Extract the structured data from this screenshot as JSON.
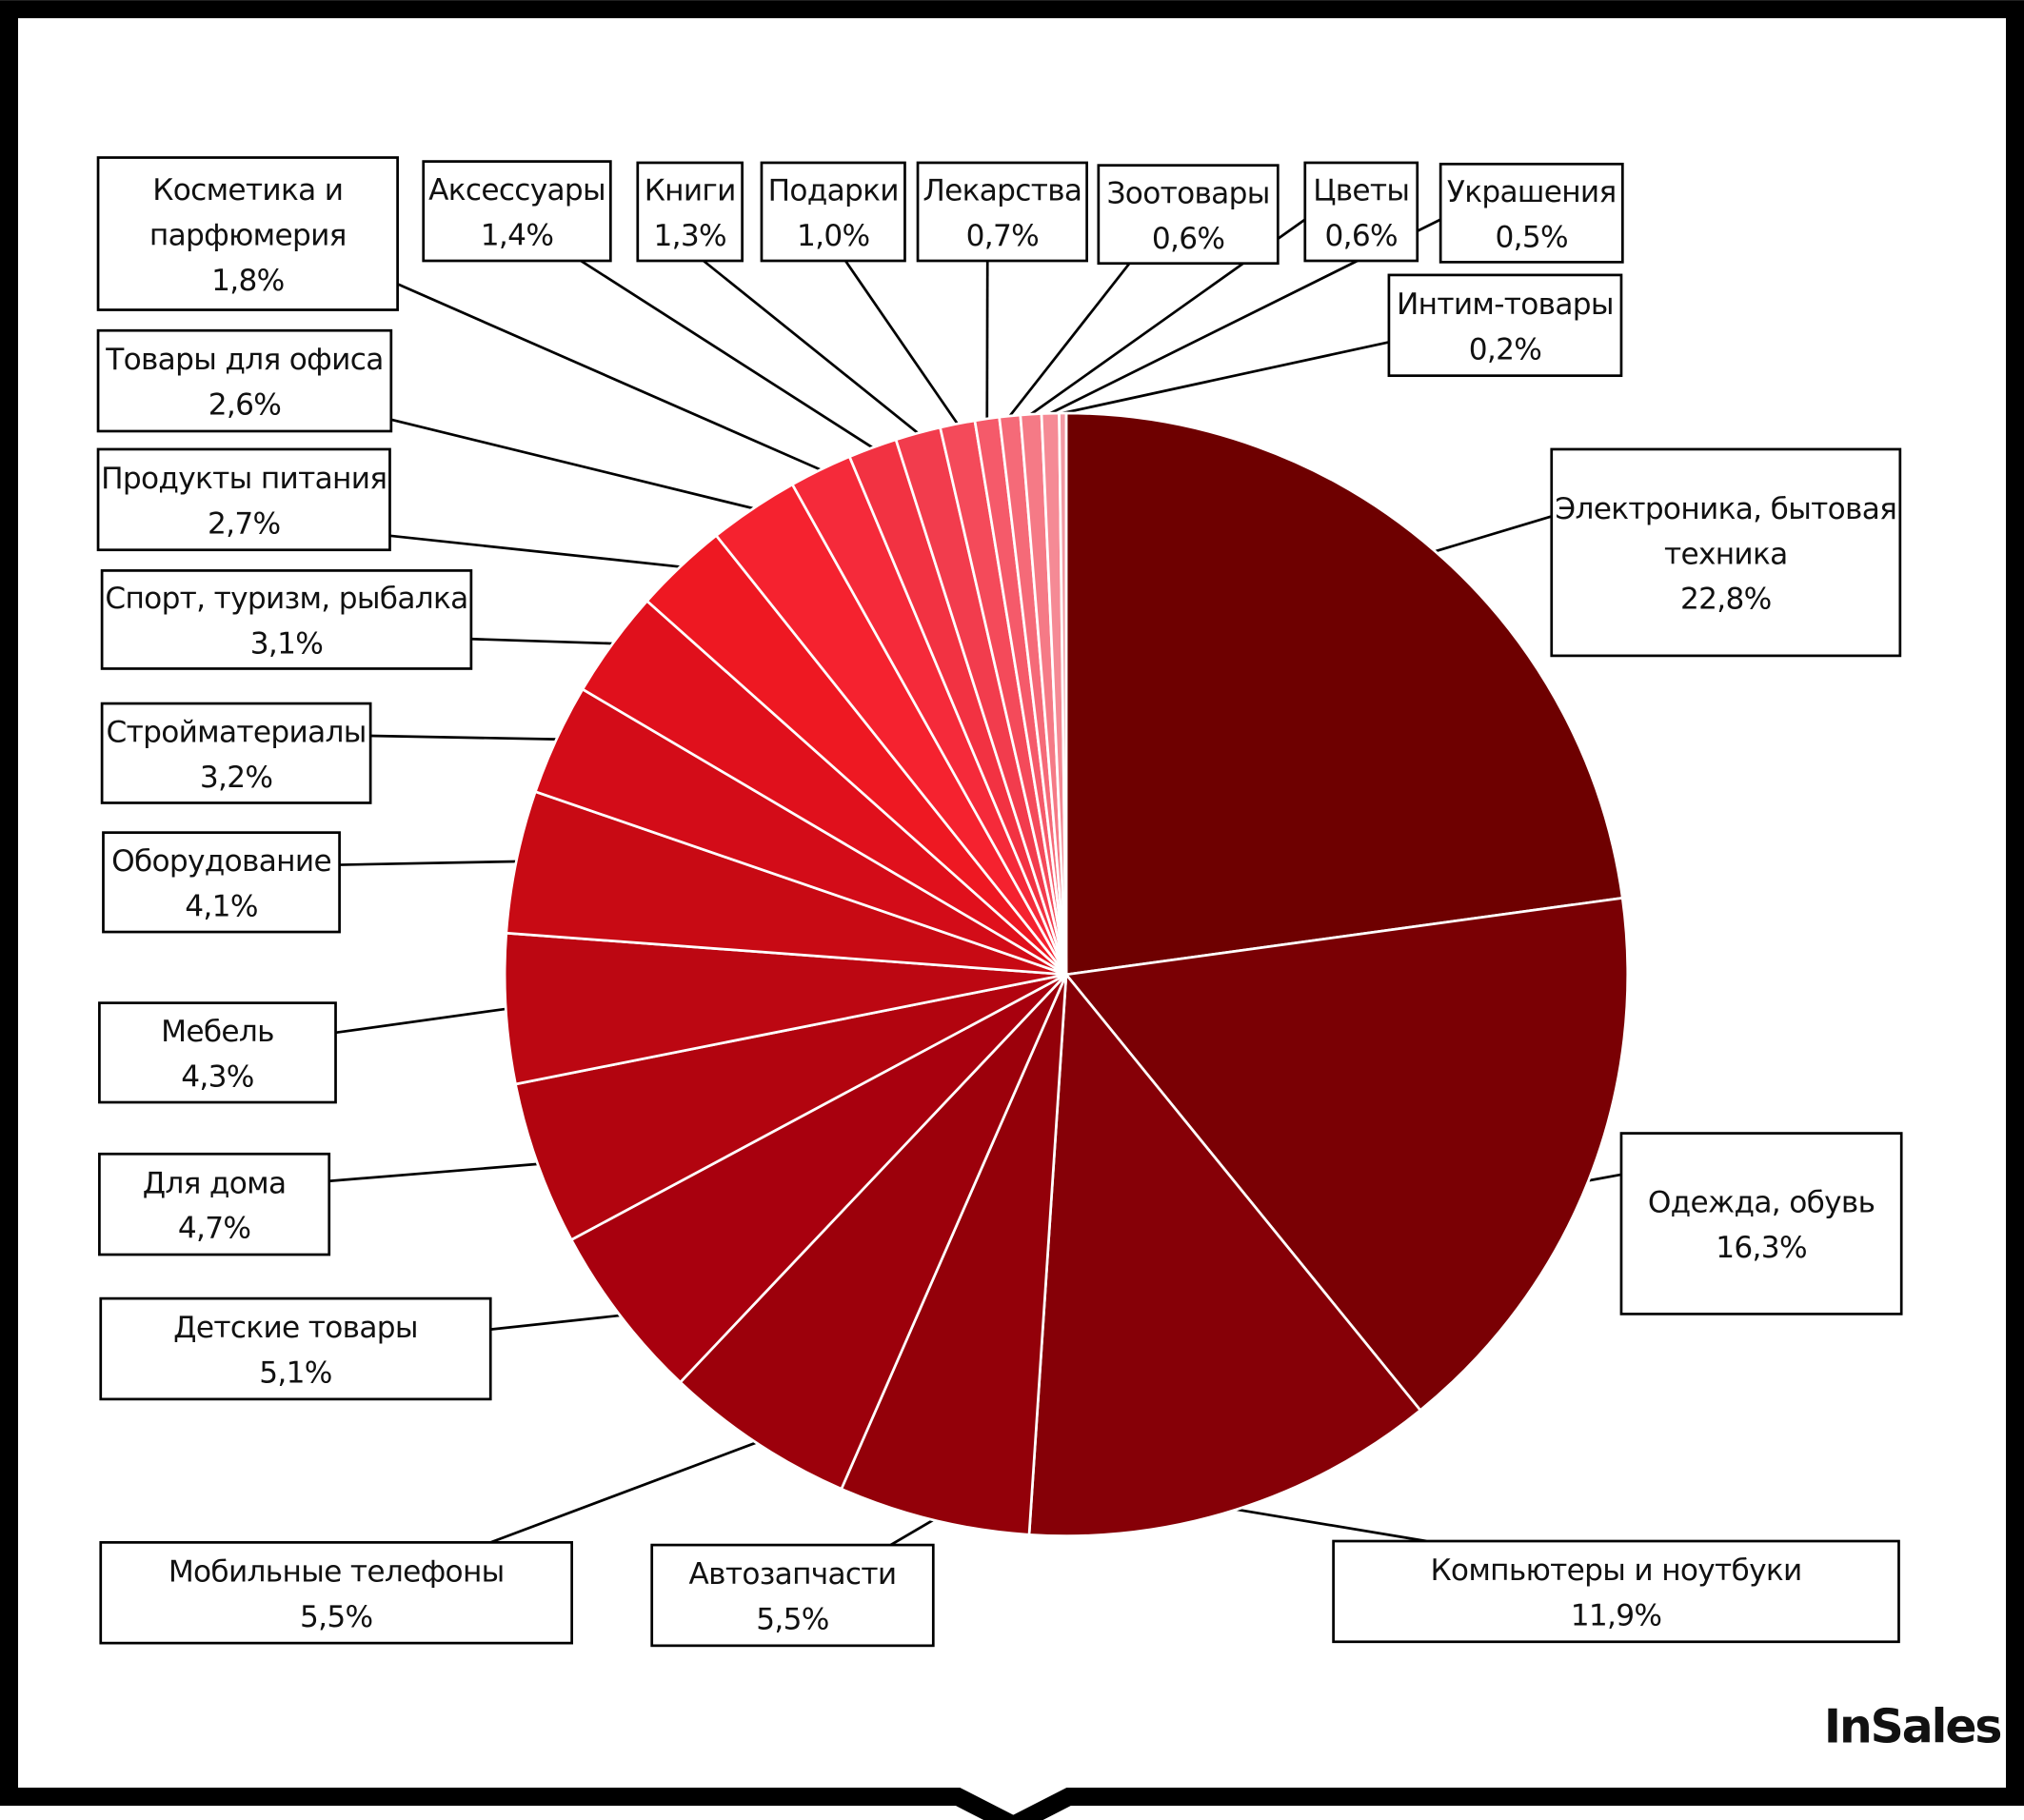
{
  "chart_data": {
    "type": "pie",
    "title": "",
    "start": "12 o'clock, clockwise",
    "legend": "none (callout labels)",
    "slices": [
      {
        "label": "Электроника, бытовая\nтехника",
        "value": 22.8,
        "value_label": "22,8%",
        "color": "#6e0000"
      },
      {
        "label": "Одежда, обувь",
        "value": 16.3,
        "value_label": "16,3%",
        "color": "#7a0004"
      },
      {
        "label": "Компьютеры и ноутбуки",
        "value": 11.9,
        "value_label": "11,9%",
        "color": "#860007"
      },
      {
        "label": "Автозапчасти",
        "value": 5.5,
        "value_label": "5,5%",
        "color": "#930009"
      },
      {
        "label": "Мобильные телефоны",
        "value": 5.5,
        "value_label": "5,5%",
        "color": "#9c000b"
      },
      {
        "label": "Детские товары",
        "value": 5.1,
        "value_label": "5,1%",
        "color": "#a8000e"
      },
      {
        "label": "Для дома",
        "value": 4.7,
        "value_label": "4,7%",
        "color": "#b2040f"
      },
      {
        "label": "Мебель",
        "value": 4.3,
        "value_label": "4,3%",
        "color": "#bc0712"
      },
      {
        "label": "Оборудование",
        "value": 4.1,
        "value_label": "4,1%",
        "color": "#c80a14"
      },
      {
        "label": "Стройматериалы",
        "value": 3.2,
        "value_label": "3,2%",
        "color": "#d30c18"
      },
      {
        "label": "Спорт, туризм, рыбалка",
        "value": 3.1,
        "value_label": "3,1%",
        "color": "#e0101c"
      },
      {
        "label": "Продукты питания",
        "value": 2.7,
        "value_label": "2,7%",
        "color": "#ee1822"
      },
      {
        "label": "Товары для офиса",
        "value": 2.6,
        "value_label": "2,6%",
        "color": "#f5222f"
      },
      {
        "label": "Косметика и\nпарфюмерия",
        "value": 1.8,
        "value_label": "1,8%",
        "color": "#f52a3a"
      },
      {
        "label": "Аксессуары",
        "value": 1.4,
        "value_label": "1,4%",
        "color": "#f23242"
      },
      {
        "label": "Книги",
        "value": 1.3,
        "value_label": "1,3%",
        "color": "#f23c4d"
      },
      {
        "label": "Подарки",
        "value": 1.0,
        "value_label": "1,0%",
        "color": "#f44a5a"
      },
      {
        "label": "Лекарства",
        "value": 0.7,
        "value_label": "0,7%",
        "color": "#f55a6a"
      },
      {
        "label": "Зоотовары",
        "value": 0.6,
        "value_label": "0,6%",
        "color": "#f56a78"
      },
      {
        "label": "Цветы",
        "value": 0.6,
        "value_label": "0,6%",
        "color": "#f57a86"
      },
      {
        "label": "Украшения",
        "value": 0.5,
        "value_label": "0,5%",
        "color": "#f58a95"
      },
      {
        "label": "Интим-товары",
        "value": 0.2,
        "value_label": "0,2%",
        "color": "#f39aa4"
      }
    ]
  },
  "logo": {
    "text": "InSales"
  },
  "colors": {
    "frame": "#000000",
    "slice_border": "#ffffff"
  }
}
